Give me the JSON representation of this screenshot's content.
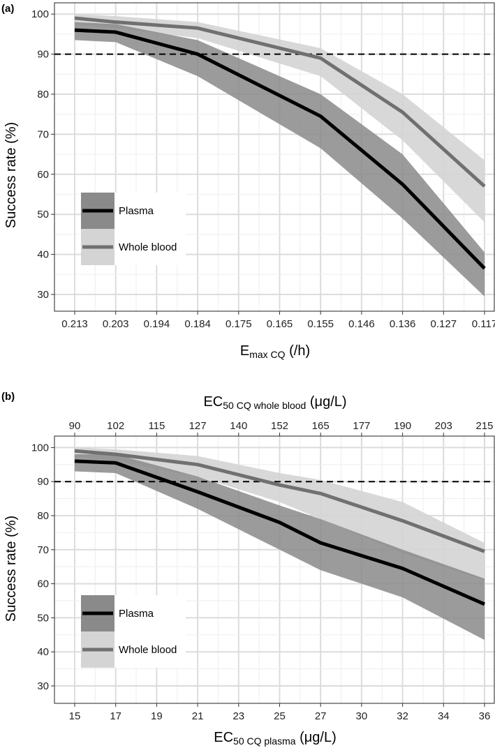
{
  "chart_data": [
    {
      "type": "line",
      "panel_label": "(a)",
      "title": "",
      "xlabel": {
        "main": "E",
        "sub": "max CQ",
        "unit": " (/h)"
      },
      "ylabel": "Success rate (%)",
      "ylim": [
        28,
        102
      ],
      "grid": true,
      "reference_line": {
        "y": 90,
        "style": "dashed"
      },
      "categories": [
        "0.213",
        "0.203",
        "0.194",
        "0.184",
        "0.175",
        "0.165",
        "0.155",
        "0.146",
        "0.136",
        "0.127",
        "0.117"
      ],
      "yticks": [
        30,
        40,
        50,
        60,
        70,
        80,
        90,
        100
      ],
      "series": [
        {
          "name": "Plasma",
          "line_color": "#000000",
          "band_color": "#8a8a8a",
          "values": [
            96,
            95.5,
            null,
            90,
            null,
            null,
            74.5,
            null,
            57.5,
            null,
            36.5
          ],
          "lower": [
            93.5,
            93,
            null,
            84.5,
            null,
            null,
            66.5,
            null,
            49,
            null,
            29.5
          ],
          "upper": [
            98,
            97.5,
            null,
            93.5,
            null,
            null,
            80,
            null,
            65,
            null,
            40.5
          ]
        },
        {
          "name": "Whole blood",
          "line_color": "#707070",
          "band_color": "#d4d4d4",
          "values": [
            99,
            98,
            null,
            96.5,
            null,
            null,
            89,
            null,
            75.5,
            null,
            57
          ],
          "lower": [
            97.5,
            96.5,
            null,
            94,
            null,
            null,
            84.5,
            null,
            68.5,
            null,
            48
          ],
          "upper": [
            100,
            99.5,
            null,
            98,
            null,
            null,
            91.5,
            null,
            80,
            null,
            63.5
          ]
        }
      ],
      "legend": {
        "position": "bottom-left",
        "entries": [
          "Plasma",
          "Whole blood"
        ]
      }
    },
    {
      "type": "line",
      "panel_label": "(b)",
      "title": "",
      "xlabel": {
        "main": "EC",
        "sub": "50 CQ plasma",
        "unit": " (μg/L)"
      },
      "x2label": {
        "main": "EC",
        "sub": "50 CQ whole blood",
        "unit": " (μg/L)"
      },
      "ylabel": "Success rate (%)",
      "ylim": [
        28,
        102
      ],
      "grid": true,
      "reference_line": {
        "y": 90,
        "style": "dashed"
      },
      "categories": [
        "15",
        "17",
        "19",
        "21",
        "23",
        "25",
        "27",
        "30",
        "32",
        "34",
        "36"
      ],
      "top_categories": [
        "90",
        "102",
        "115",
        "127",
        "140",
        "152",
        "165",
        "177",
        "190",
        "203",
        "215"
      ],
      "yticks": [
        30,
        40,
        50,
        60,
        70,
        80,
        90,
        100
      ],
      "series": [
        {
          "name": "Plasma",
          "line_color": "#000000",
          "band_color": "#8a8a8a",
          "values": [
            96,
            95.5,
            null,
            87,
            null,
            78,
            72,
            null,
            64.5,
            null,
            54
          ],
          "lower": [
            93,
            92.5,
            null,
            82,
            null,
            70,
            64,
            null,
            56,
            null,
            43.5
          ],
          "upper": [
            98,
            98,
            null,
            91.5,
            null,
            83,
            79,
            null,
            70,
            null,
            61.5
          ]
        },
        {
          "name": "Whole blood",
          "line_color": "#707070",
          "band_color": "#d4d4d4",
          "values": [
            99,
            98,
            null,
            95,
            null,
            89,
            86.5,
            null,
            78.5,
            null,
            69.5
          ],
          "lower": [
            97.5,
            96,
            null,
            91.5,
            null,
            84,
            79,
            null,
            69,
            null,
            61
          ],
          "upper": [
            100,
            99.5,
            null,
            97.5,
            null,
            92.5,
            90.5,
            null,
            84,
            null,
            72
          ]
        }
      ],
      "legend": {
        "position": "bottom-left",
        "entries": [
          "Plasma",
          "Whole blood"
        ]
      }
    }
  ]
}
